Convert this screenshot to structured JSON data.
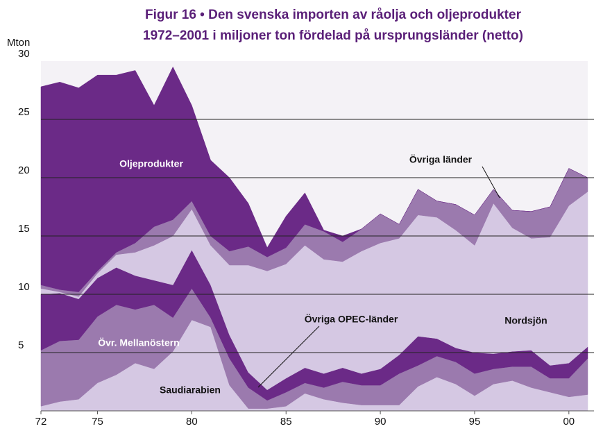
{
  "chart_data": {
    "type": "stacked_area",
    "title": [
      "Figur 16 • Den svenska importen av råolja och oljeprodukter",
      "1972–2001 i miljoner ton fördelad på ursprungsländer (netto)"
    ],
    "y_label": "Mton",
    "x": [
      1972,
      1973,
      1974,
      1975,
      1976,
      1977,
      1978,
      1979,
      1980,
      1981,
      1982,
      1983,
      1984,
      1985,
      1986,
      1987,
      1988,
      1989,
      1990,
      1991,
      1992,
      1993,
      1994,
      1995,
      1996,
      1997,
      1998,
      1999,
      2000,
      2001
    ],
    "series": [
      {
        "name": "Saudiarabien",
        "color": "#d5c8e3",
        "values": [
          0.4,
          0.8,
          1.0,
          2.4,
          3.1,
          4.1,
          3.6,
          5.1,
          7.8,
          7.2,
          2.2,
          0.2,
          0.2,
          0.4,
          1.5,
          1.0,
          0.7,
          0.5,
          0.5,
          0.5,
          2.1,
          2.9,
          2.3,
          1.3,
          2.3,
          2.6,
          2.0,
          1.6,
          1.2,
          1.4
        ]
      },
      {
        "name": "Övr. Mellanöstern",
        "color": "#9b7aae",
        "values": [
          4.8,
          5.2,
          5.1,
          5.7,
          6.0,
          4.6,
          5.5,
          2.9,
          2.7,
          0.8,
          2.3,
          1.8,
          0.7,
          1.2,
          0.9,
          1.0,
          1.8,
          1.7,
          1.7,
          2.7,
          1.8,
          1.8,
          1.9,
          1.9,
          1.3,
          1.2,
          1.8,
          1.2,
          1.6,
          3.1
        ]
      },
      {
        "name": "Övriga OPEC-länder",
        "color": "#6b2a87",
        "values": [
          4.8,
          4.1,
          3.5,
          3.3,
          3.2,
          2.9,
          2.1,
          2.8,
          3.3,
          2.8,
          2.0,
          1.3,
          0.9,
          1.2,
          1.3,
          1.2,
          1.2,
          1.0,
          1.4,
          1.6,
          2.5,
          1.5,
          1.2,
          1.8,
          1.3,
          1.3,
          1.4,
          1.1,
          1.3,
          1.0
        ]
      },
      {
        "name": "Nordsjön",
        "color": "#d5c8e3",
        "values": [
          0.5,
          0.1,
          0.2,
          0.4,
          1.1,
          2.0,
          3.0,
          4.2,
          3.5,
          3.4,
          6.0,
          9.2,
          10.2,
          9.8,
          10.5,
          9.8,
          9.1,
          10.5,
          10.8,
          10.0,
          10.4,
          10.4,
          10.1,
          9.2,
          12.9,
          10.6,
          9.6,
          11.0,
          13.5,
          13.3
        ]
      },
      {
        "name": "Övriga länder",
        "color": "#9b7aae",
        "values": [
          0.3,
          0.2,
          0.4,
          0.2,
          0.2,
          0.8,
          1.6,
          1.4,
          0.7,
          0.8,
          1.2,
          1.6,
          1.2,
          1.4,
          1.8,
          2.4,
          1.7,
          1.9,
          2.5,
          1.2,
          2.2,
          1.4,
          2.2,
          2.6,
          1.2,
          1.5,
          2.3,
          2.6,
          3.2,
          1.2
        ]
      },
      {
        "name": "Oljeprodukter",
        "color": "#6b2a87",
        "values": [
          17.0,
          17.8,
          17.5,
          16.8,
          15.2,
          14.8,
          10.4,
          13.1,
          8.2,
          6.5,
          6.3,
          3.7,
          0.8,
          2.7,
          2.7,
          0.1,
          0.5,
          0,
          0,
          0,
          0,
          0,
          0,
          0,
          0,
          0,
          0,
          0,
          0,
          0
        ]
      }
    ],
    "xlim": [
      1972,
      2001
    ],
    "xticks": [
      {
        "value": 1972,
        "label": "72"
      },
      {
        "value": 1975,
        "label": "75"
      },
      {
        "value": 1980,
        "label": "80"
      },
      {
        "value": 1985,
        "label": "85"
      },
      {
        "value": 1990,
        "label": "90"
      },
      {
        "value": 1995,
        "label": "95"
      },
      {
        "value": 2000,
        "label": "00"
      }
    ],
    "ylim": [
      0,
      30
    ],
    "yticks": [
      5,
      10,
      15,
      20,
      25,
      30
    ],
    "grid": true
  }
}
